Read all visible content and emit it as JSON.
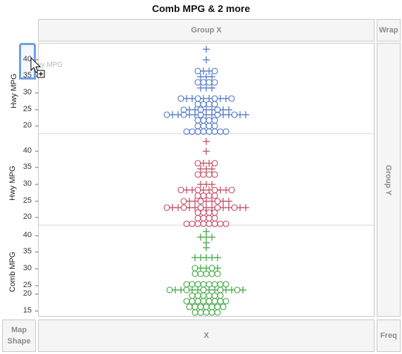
{
  "window": {
    "title": "Comb MPG & 2 more"
  },
  "drop_zones": {
    "group_x": "Group X",
    "wrap": "Wrap",
    "group_y": "Group Y",
    "x": "X",
    "map_shape": "Map Shape",
    "freq": "Freq"
  },
  "panels": [
    {
      "ylabel": "Hwy MPG",
      "color": "#4a72c4",
      "ticks": [
        "40",
        "35",
        "30",
        "25",
        "20"
      ]
    },
    {
      "ylabel": "Hwy MPG",
      "color": "#c2455e",
      "ticks": [
        "40",
        "35",
        "30",
        "25",
        "20"
      ]
    },
    {
      "ylabel": "Comb MPG",
      "color": "#3aa33a",
      "ticks": [
        "40",
        "35",
        "30",
        "25",
        "20",
        "15"
      ]
    }
  ],
  "drag_ghost_label": "Hwy MPG",
  "icons": {
    "cursor": "arrow-cursor-icon",
    "drop_plus": "plus-icon"
  }
}
